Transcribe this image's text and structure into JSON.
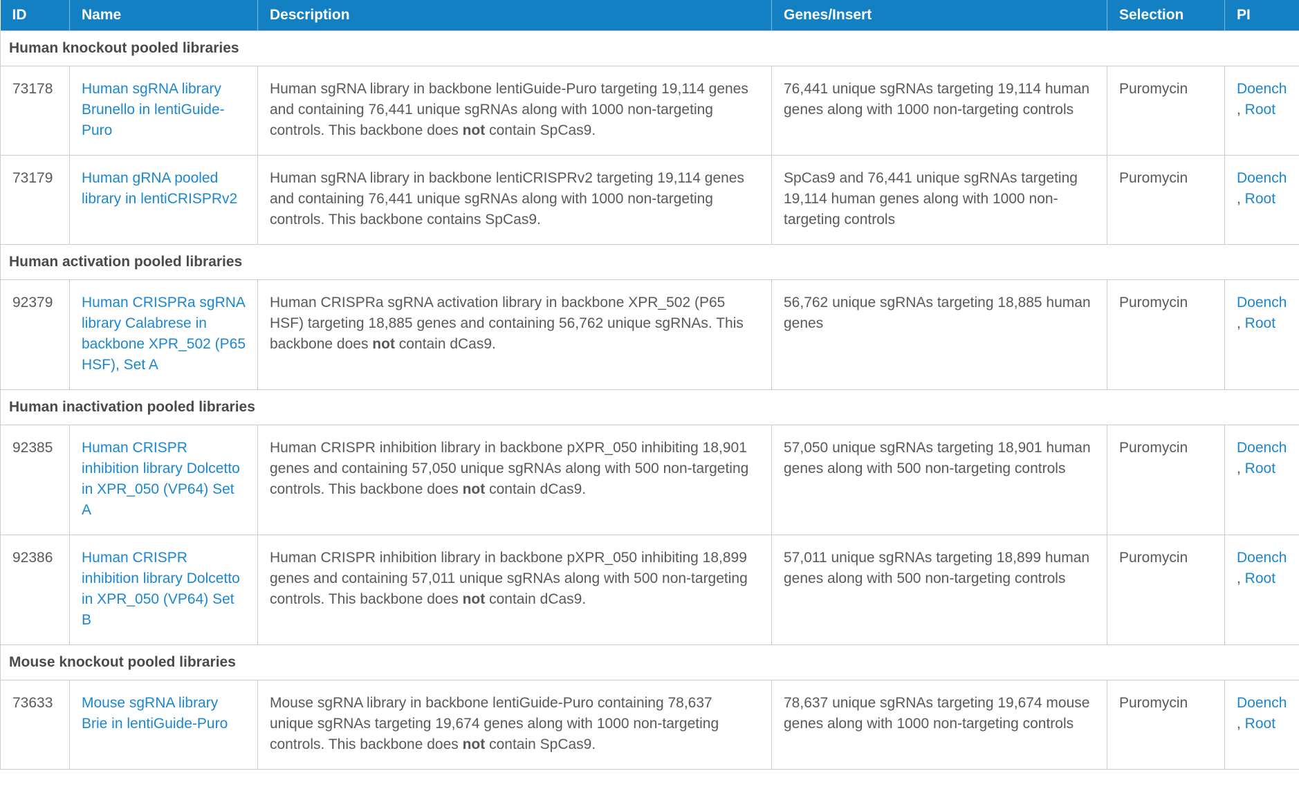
{
  "colors": {
    "header_bg": "#1480c4",
    "link": "#1b87d2",
    "body_text": "#58595b",
    "section_text": "#4a4a4c",
    "border": "#cbcbcb"
  },
  "table": {
    "columns": [
      "ID",
      "Name",
      "Description",
      "Genes/Insert",
      "Selection",
      "PI"
    ],
    "sections": [
      {
        "title": "Human knockout pooled libraries",
        "rows": [
          {
            "id": "73178",
            "name": "Human sgRNA library Brunello in lentiGuide-Puro",
            "description": "Human sgRNA library in backbone lentiGuide-Puro targeting 19,114 genes and containing 76,441 unique sgRNAs along with 1000 non-targeting controls. This backbone does **not** contain SpCas9.",
            "genes_insert": "76,441 unique sgRNAs targeting 19,114 human genes along with 1000 non-targeting controls",
            "selection": "Puromycin",
            "pi": [
              "Doench",
              "Root"
            ]
          },
          {
            "id": "73179",
            "name": "Human gRNA pooled library in lentiCRISPRv2",
            "description": "Human sgRNA library in backbone lentiCRISPRv2 targeting 19,114 genes and containing 76,441 unique sgRNAs along with 1000 non-targeting controls. This backbone contains SpCas9.",
            "genes_insert": "SpCas9 and 76,441 unique sgRNAs targeting 19,114 human genes along with 1000 non-targeting controls",
            "selection": "Puromycin",
            "pi": [
              "Doench",
              "Root"
            ]
          }
        ]
      },
      {
        "title": "Human activation pooled libraries",
        "rows": [
          {
            "id": "92379",
            "name": "Human CRISPRa sgRNA library Calabrese in backbone XPR_502 (P65 HSF), Set A",
            "description": "Human CRISPRa sgRNA activation library in backbone XPR_502 (P65 HSF) targeting 18,885 genes and containing 56,762 unique sgRNAs. This backbone does **not** contain dCas9.",
            "genes_insert": "56,762 unique sgRNAs targeting 18,885 human genes",
            "selection": "Puromycin",
            "pi": [
              "Doench",
              "Root"
            ]
          }
        ]
      },
      {
        "title": "Human inactivation pooled libraries",
        "rows": [
          {
            "id": "92385",
            "name": "Human CRISPR inhibition library Dolcetto in XPR_050 (VP64) Set A",
            "description": "Human CRISPR inhibition library in backbone pXPR_050 inhibiting 18,901 genes and containing 57,050 unique sgRNAs along with 500 non-targeting controls. This backbone does **not** contain dCas9.",
            "genes_insert": "57,050 unique sgRNAs targeting 18,901 human genes along with 500 non-targeting controls",
            "selection": "Puromycin",
            "pi": [
              "Doench",
              "Root"
            ]
          },
          {
            "id": "92386",
            "name": "Human CRISPR inhibition library Dolcetto in XPR_050 (VP64) Set B",
            "description": "Human CRISPR inhibition library in backbone pXPR_050 inhibiting 18,899 genes and containing 57,011 unique sgRNAs along with 500 non-targeting controls. This backbone does **not** contain dCas9.",
            "genes_insert": "57,011 unique sgRNAs targeting 18,899 human genes along with 500 non-targeting controls",
            "selection": "Puromycin",
            "pi": [
              "Doench",
              "Root"
            ]
          }
        ]
      },
      {
        "title": "Mouse knockout pooled libraries",
        "rows": [
          {
            "id": "73633",
            "name": "Mouse sgRNA library Brie in lentiGuide-Puro",
            "description": "Mouse sgRNA library in backbone lentiGuide-Puro containing 78,637 unique sgRNAs targeting 19,674 genes along with 1000 non-targeting controls. This backbone does **not** contain SpCas9.",
            "genes_insert": "78,637 unique sgRNAs targeting 19,674 mouse genes along with 1000 non-targeting controls",
            "selection": "Puromycin",
            "pi": [
              "Doench",
              "Root"
            ]
          }
        ]
      }
    ]
  }
}
